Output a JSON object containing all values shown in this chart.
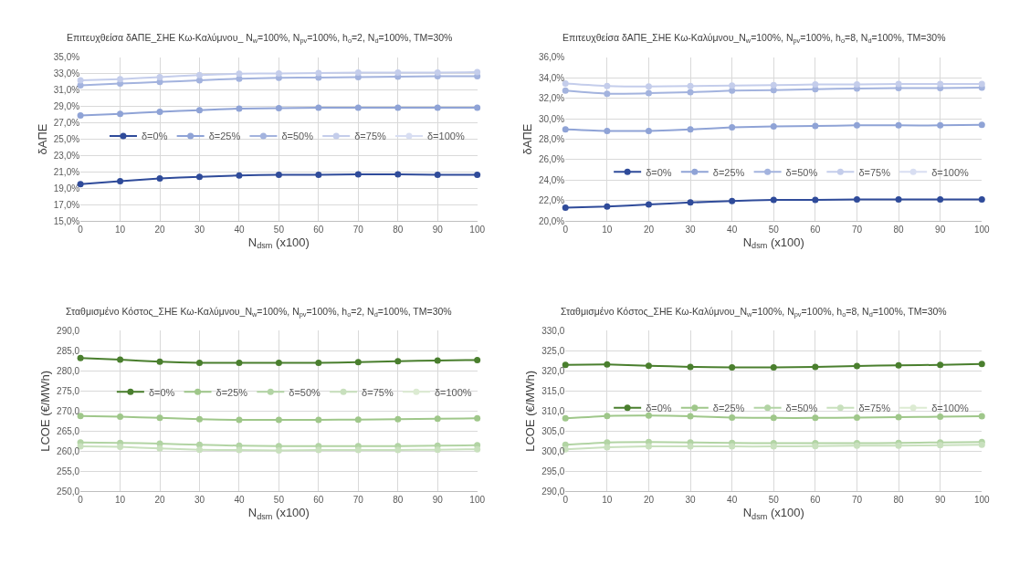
{
  "chart_data": [
    {
      "type": "line",
      "title": "Επιτευχθείσα δΑΠΕ_ΣΗΕ Κω-Καλύμνου_ N$_{w}$=100%, N$_{pv}$=100%, h$_{o}$=2, N$_{d}$=100%, TM=30%",
      "xlabel": "N$_{dsm}$ (x100)",
      "ylabel": "δΑΠΕ",
      "x": [
        0,
        10,
        20,
        30,
        40,
        50,
        60,
        70,
        80,
        90,
        100
      ],
      "xlim": [
        0,
        100
      ],
      "xticks": [
        0,
        10,
        20,
        30,
        40,
        50,
        60,
        70,
        80,
        90,
        100
      ],
      "ylim": [
        15,
        35
      ],
      "yticks": [
        {
          "value": 15,
          "label": "15,0%"
        },
        {
          "value": 17,
          "label": "17,0%"
        },
        {
          "value": 19,
          "label": "19,0%"
        },
        {
          "value": 21,
          "label": "21,0%"
        },
        {
          "value": 23,
          "label": "23,0%"
        },
        {
          "value": 25,
          "label": "25,0%"
        },
        {
          "value": 27,
          "label": "27,0%"
        },
        {
          "value": 29,
          "label": "29,0%"
        },
        {
          "value": 31,
          "label": "31,0%"
        },
        {
          "value": 33,
          "label": "33,0%"
        },
        {
          "value": 35,
          "label": "35,0%"
        }
      ],
      "grid": true,
      "legend": "right",
      "marker": "circle",
      "line_style": "solid",
      "series": [
        {
          "name": "δ=0%",
          "color": "#2f4b9a",
          "values": [
            19.5,
            19.85,
            20.2,
            20.4,
            20.55,
            20.65,
            20.65,
            20.7,
            20.7,
            20.65,
            20.65
          ]
        },
        {
          "name": "δ=25%",
          "color": "#8fa3d6",
          "values": [
            27.9,
            28.1,
            28.35,
            28.55,
            28.75,
            28.8,
            28.85,
            28.85,
            28.85,
            28.85,
            28.85
          ]
        },
        {
          "name": "δ=50%",
          "color": "#a3b3de",
          "values": [
            31.6,
            31.8,
            32.0,
            32.2,
            32.4,
            32.5,
            32.55,
            32.6,
            32.65,
            32.7,
            32.7
          ]
        },
        {
          "name": "δ=75%",
          "color": "#c4cdeb",
          "values": [
            32.2,
            32.35,
            32.6,
            32.85,
            33.0,
            33.05,
            33.1,
            33.15,
            33.15,
            33.15,
            33.2
          ]
        },
        {
          "name": "δ=100%",
          "color": "#d8def2",
          "values": [
            null,
            null,
            null,
            null,
            null,
            null,
            null,
            null,
            null,
            null,
            null
          ]
        }
      ]
    },
    {
      "type": "line",
      "title": "Επιτευχθείσα δΑΠΕ_ΣΗΕ Κω-Καλύμνου_N$_{w}$=100%, N$_{pv}$=100%, h$_{o}$=8, N$_{d}$=100%, TM=30%",
      "xlabel": "N$_{dsm}$ (x100)",
      "ylabel": "δΑΠΕ",
      "x": [
        0,
        10,
        20,
        30,
        40,
        50,
        60,
        70,
        80,
        90,
        100
      ],
      "xlim": [
        0,
        100
      ],
      "xticks": [
        0,
        10,
        20,
        30,
        40,
        50,
        60,
        70,
        80,
        90,
        100
      ],
      "ylim": [
        20,
        36
      ],
      "yticks": [
        {
          "value": 20,
          "label": "20,0%"
        },
        {
          "value": 22,
          "label": "22,0%"
        },
        {
          "value": 24,
          "label": "24,0%"
        },
        {
          "value": 26,
          "label": "26,0%"
        },
        {
          "value": 28,
          "label": "28,0%"
        },
        {
          "value": 30,
          "label": "30,0%"
        },
        {
          "value": 32,
          "label": "32,0%"
        },
        {
          "value": 34,
          "label": "34,0%"
        },
        {
          "value": 36,
          "label": "36,0%"
        }
      ],
      "grid": true,
      "legend": "bottom right",
      "marker": "circle",
      "line_style": "solid",
      "series": [
        {
          "name": "δ=0%",
          "color": "#2f4b9a",
          "values": [
            21.3,
            21.4,
            21.6,
            21.8,
            21.95,
            22.05,
            22.05,
            22.1,
            22.1,
            22.1,
            22.1
          ]
        },
        {
          "name": "δ=25%",
          "color": "#8fa3d6",
          "values": [
            28.95,
            28.8,
            28.8,
            28.95,
            29.15,
            29.25,
            29.3,
            29.35,
            29.35,
            29.35,
            29.4
          ]
        },
        {
          "name": "δ=50%",
          "color": "#a3b3de",
          "values": [
            32.75,
            32.45,
            32.5,
            32.6,
            32.75,
            32.8,
            32.9,
            32.95,
            33.0,
            33.0,
            33.05
          ]
        },
        {
          "name": "δ=75%",
          "color": "#c4cdeb",
          "values": [
            33.45,
            33.2,
            33.15,
            33.2,
            33.25,
            33.3,
            33.35,
            33.35,
            33.4,
            33.4,
            33.4
          ]
        },
        {
          "name": "δ=100%",
          "color": "#d8def2",
          "values": [
            null,
            null,
            null,
            null,
            null,
            null,
            null,
            null,
            null,
            null,
            null
          ]
        }
      ]
    },
    {
      "type": "line",
      "title": "Σταθμισμένο Κόστος_ΣΗΕ Κω-Καλύμνου_N$_{w}$=100%, N$_{pv}$=100%, h$_{o}$=2, N$_{d}$=100%, TM=30%",
      "xlabel": "N$_{dsm}$ (x100)",
      "ylabel": "LCOE (€/MWh)",
      "x": [
        0,
        10,
        20,
        30,
        40,
        50,
        60,
        70,
        80,
        90,
        100
      ],
      "xlim": [
        0,
        100
      ],
      "xticks": [
        0,
        10,
        20,
        30,
        40,
        50,
        60,
        70,
        80,
        90,
        100
      ],
      "ylim": [
        250,
        290
      ],
      "yticks": [
        {
          "value": 250,
          "label": "250,0"
        },
        {
          "value": 255,
          "label": "255,0"
        },
        {
          "value": 260,
          "label": "260,0"
        },
        {
          "value": 265,
          "label": "265,0"
        },
        {
          "value": 270,
          "label": "270,0"
        },
        {
          "value": 275,
          "label": "275,0"
        },
        {
          "value": 280,
          "label": "280,0"
        },
        {
          "value": 285,
          "label": "285,0"
        },
        {
          "value": 290,
          "label": "290,0"
        }
      ],
      "grid": true,
      "legend": "top left",
      "marker": "circle",
      "line_style": "solid",
      "series": [
        {
          "name": "δ=0%",
          "color": "#4a7f2e",
          "values": [
            283.2,
            282.8,
            282.3,
            282.0,
            282.0,
            282.0,
            282.0,
            282.2,
            282.4,
            282.6,
            282.7
          ]
        },
        {
          "name": "δ=25%",
          "color": "#9fc78a",
          "values": [
            268.8,
            268.6,
            268.3,
            268.0,
            267.8,
            267.8,
            267.8,
            267.9,
            268.0,
            268.1,
            268.2
          ]
        },
        {
          "name": "δ=50%",
          "color": "#b2d4a4",
          "values": [
            262.2,
            262.1,
            261.9,
            261.6,
            261.4,
            261.3,
            261.3,
            261.3,
            261.3,
            261.4,
            261.5
          ]
        },
        {
          "name": "δ=75%",
          "color": "#c8e0bd",
          "values": [
            261.2,
            261.1,
            260.7,
            260.4,
            260.3,
            260.2,
            260.3,
            260.3,
            260.3,
            260.4,
            260.5
          ]
        },
        {
          "name": "δ=100%",
          "color": "#dcebd2",
          "values": [
            null,
            null,
            null,
            null,
            null,
            null,
            null,
            null,
            null,
            null,
            null
          ]
        }
      ]
    },
    {
      "type": "line",
      "title": "Σταθμισμένο Κόστος_ΣΗΕ Κω-Καλύμνου_N$_{w}$=100%, N$_{pv}$=100%, h$_{o}$=8, N$_{d}$=100%, TM=30%",
      "xlabel": "N$_{dsm}$ (x100)",
      "ylabel": "LCOE (€/MWh)",
      "x": [
        0,
        10,
        20,
        30,
        40,
        50,
        60,
        70,
        80,
        90,
        100
      ],
      "xlim": [
        0,
        100
      ],
      "xticks": [
        0,
        10,
        20,
        30,
        40,
        50,
        60,
        70,
        80,
        90,
        100
      ],
      "ylim": [
        290,
        330
      ],
      "yticks": [
        {
          "value": 290,
          "label": "290,0"
        },
        {
          "value": 295,
          "label": "295,0"
        },
        {
          "value": 300,
          "label": "300,0"
        },
        {
          "value": 305,
          "label": "305,0"
        },
        {
          "value": 310,
          "label": "310,0"
        },
        {
          "value": 315,
          "label": "315,0"
        },
        {
          "value": 320,
          "label": "320,0"
        },
        {
          "value": 325,
          "label": "325,0"
        },
        {
          "value": 330,
          "label": "330,0"
        }
      ],
      "grid": true,
      "legend": "right",
      "marker": "circle",
      "line_style": "solid",
      "series": [
        {
          "name": "δ=0%",
          "color": "#4a7f2e",
          "values": [
            321.5,
            321.6,
            321.3,
            321.0,
            320.9,
            320.9,
            321.0,
            321.2,
            321.4,
            321.5,
            321.7
          ]
        },
        {
          "name": "δ=25%",
          "color": "#9fc78a",
          "values": [
            308.2,
            308.8,
            308.9,
            308.7,
            308.4,
            308.3,
            308.3,
            308.4,
            308.5,
            308.6,
            308.7
          ]
        },
        {
          "name": "δ=50%",
          "color": "#b2d4a4",
          "values": [
            301.6,
            302.2,
            302.3,
            302.2,
            302.1,
            302.0,
            302.0,
            302.0,
            302.1,
            302.2,
            302.3
          ]
        },
        {
          "name": "δ=75%",
          "color": "#c8e0bd",
          "values": [
            300.5,
            301.0,
            301.2,
            301.2,
            301.2,
            301.2,
            301.3,
            301.4,
            301.4,
            301.5,
            301.6
          ]
        },
        {
          "name": "δ=100%",
          "color": "#dcebd2",
          "values": [
            null,
            null,
            null,
            null,
            null,
            null,
            null,
            null,
            null,
            null,
            null
          ]
        }
      ]
    }
  ]
}
